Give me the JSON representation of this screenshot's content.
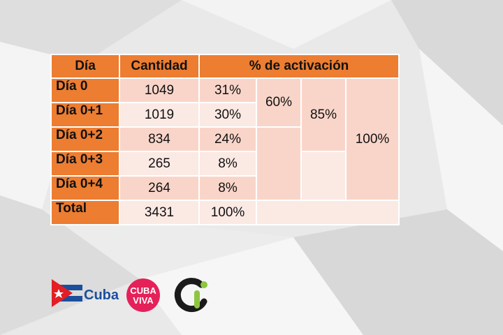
{
  "table": {
    "headers": {
      "dia": "Día",
      "cantidad": "Cantidad",
      "activacion": "% de activación"
    },
    "rows": [
      {
        "dia": "Día 0",
        "cantidad": "1049",
        "pct": "31%"
      },
      {
        "dia": "Día 0+1",
        "cantidad": "1019",
        "pct": "30%"
      },
      {
        "dia": "Día 0+2",
        "cantidad": "834",
        "pct": "24%"
      },
      {
        "dia": "Día 0+3",
        "cantidad": "265",
        "pct": "8%"
      },
      {
        "dia": "Día 0+4",
        "cantidad": "264",
        "pct": "8%"
      }
    ],
    "total": {
      "dia": "Total",
      "cantidad": "3431",
      "pct": "100%"
    },
    "cumulative": {
      "two_days": "60%",
      "three_days": "85%",
      "five_days": "100%"
    }
  },
  "logos": {
    "cuba": "Cuba",
    "cuba_viva_line1": "CUBA",
    "cuba_viva_line2": "VIVA"
  },
  "colors": {
    "header": "#ed7d31",
    "cell_dark": "#f9d5c9",
    "cell_light": "#fbe9e4"
  }
}
